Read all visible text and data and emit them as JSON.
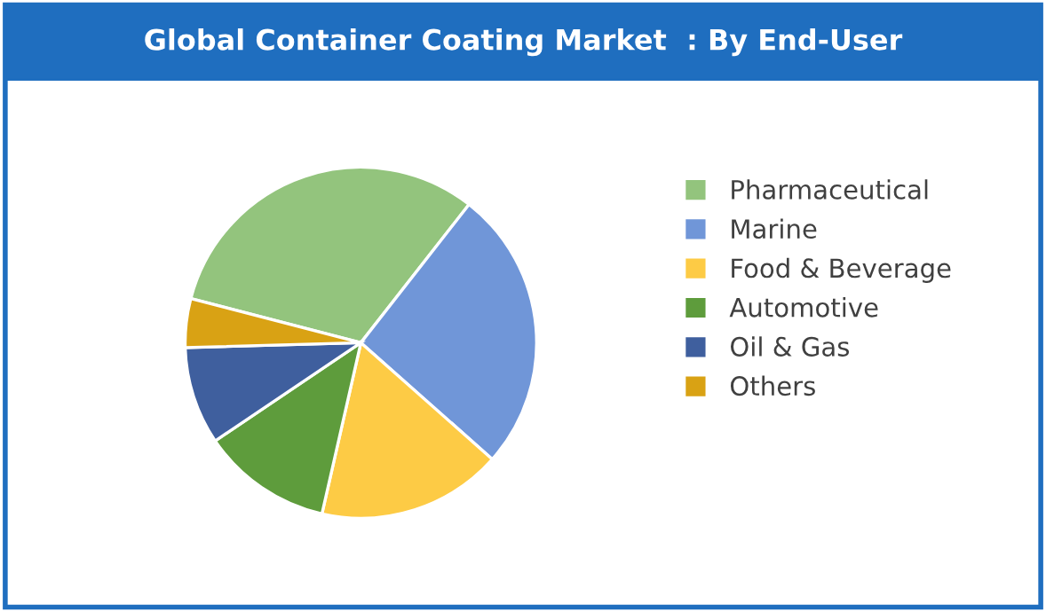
{
  "chart_data": {
    "type": "pie",
    "title": "Global Container Coating Market  : By End-User",
    "categories": [
      "Pharmaceutical",
      "Marine",
      "Food & Beverage",
      "Automotive",
      "Oil & Gas",
      "Others"
    ],
    "values": [
      31.5,
      26,
      17,
      12,
      9,
      4.5
    ],
    "colors": [
      "#93c47d",
      "#7096d8",
      "#fdcb45",
      "#5e9c3c",
      "#3f5f9e",
      "#d9a214"
    ],
    "legend": "right"
  }
}
